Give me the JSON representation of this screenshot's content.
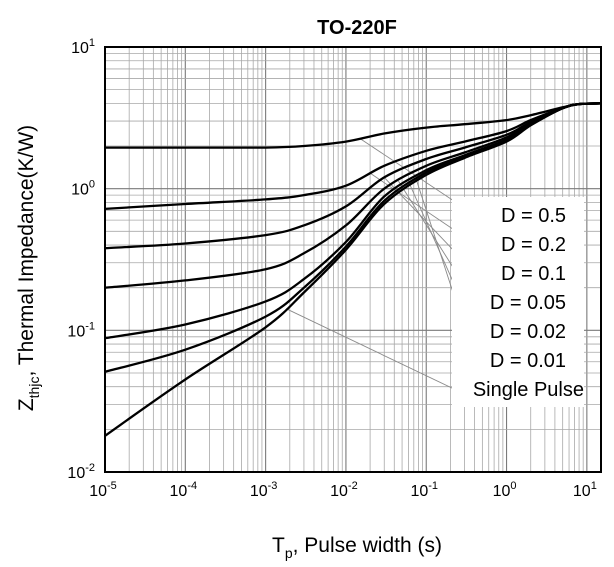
{
  "chart_data": {
    "type": "line",
    "title": "TO-220F",
    "xlabel": {
      "main": "T",
      "sub": "p",
      "rest": ", Pulse width (s)"
    },
    "ylabel": {
      "main": "Z",
      "sub": "thjc",
      "rest": ", Thermal Impedance(K/W)"
    },
    "x_scale": "log",
    "y_scale": "log",
    "xlim": [
      1e-05,
      15
    ],
    "ylim": [
      0.01,
      10
    ],
    "grid": true,
    "x_ticks": [
      {
        "base": "10",
        "exp": "-5",
        "value": 1e-05
      },
      {
        "base": "10",
        "exp": "-4",
        "value": 0.0001
      },
      {
        "base": "10",
        "exp": "-3",
        "value": 0.001
      },
      {
        "base": "10",
        "exp": "-2",
        "value": 0.01
      },
      {
        "base": "10",
        "exp": "-1",
        "value": 0.1
      },
      {
        "base": "10",
        "exp": "0",
        "value": 1
      },
      {
        "base": "10",
        "exp": "1",
        "value": 10
      }
    ],
    "y_ticks": [
      {
        "base": "10",
        "exp": "-2",
        "value": 0.01
      },
      {
        "base": "10",
        "exp": "-1",
        "value": 0.1
      },
      {
        "base": "10",
        "exp": "0",
        "value": 1
      },
      {
        "base": "10",
        "exp": "1",
        "value": 10
      }
    ],
    "legend_position": "right",
    "series": [
      {
        "name": "D = 0.5",
        "x": [
          1e-05,
          0.0001,
          0.001,
          0.003,
          0.01,
          0.03,
          0.1,
          0.3,
          1,
          2,
          5,
          8,
          15
        ],
        "y": [
          1.95,
          1.95,
          1.95,
          2.0,
          2.15,
          2.45,
          2.7,
          2.85,
          3.05,
          3.3,
          3.75,
          3.95,
          4.0
        ]
      },
      {
        "name": "D = 0.2",
        "x": [
          1e-05,
          0.0001,
          0.001,
          0.003,
          0.01,
          0.03,
          0.1,
          0.3,
          1,
          2,
          5,
          8,
          15
        ],
        "y": [
          0.72,
          0.78,
          0.84,
          0.9,
          1.05,
          1.45,
          1.85,
          2.15,
          2.55,
          3.05,
          3.7,
          3.95,
          4.0
        ]
      },
      {
        "name": "D = 0.1",
        "x": [
          1e-05,
          0.0001,
          0.001,
          0.003,
          0.01,
          0.03,
          0.1,
          0.3,
          1,
          2,
          5,
          8,
          15
        ],
        "y": [
          0.38,
          0.41,
          0.47,
          0.55,
          0.75,
          1.2,
          1.62,
          1.95,
          2.4,
          2.95,
          3.7,
          3.95,
          4.0
        ]
      },
      {
        "name": "D = 0.05",
        "x": [
          1e-05,
          0.0001,
          0.001,
          0.003,
          0.01,
          0.03,
          0.1,
          0.3,
          1,
          2,
          5,
          8,
          15
        ],
        "y": [
          0.2,
          0.225,
          0.27,
          0.35,
          0.55,
          1.0,
          1.45,
          1.8,
          2.3,
          2.9,
          3.7,
          3.95,
          4.0
        ]
      },
      {
        "name": "D = 0.02",
        "x": [
          1e-05,
          0.0001,
          0.001,
          0.003,
          0.01,
          0.03,
          0.1,
          0.3,
          1,
          2,
          5,
          8,
          15
        ],
        "y": [
          0.088,
          0.11,
          0.16,
          0.23,
          0.42,
          0.88,
          1.35,
          1.72,
          2.22,
          2.85,
          3.7,
          3.95,
          4.0
        ]
      },
      {
        "name": "D = 0.01",
        "x": [
          1e-05,
          0.0001,
          0.001,
          0.003,
          0.01,
          0.03,
          0.1,
          0.3,
          1,
          2,
          5,
          8,
          15
        ],
        "y": [
          0.051,
          0.073,
          0.125,
          0.2,
          0.39,
          0.82,
          1.3,
          1.68,
          2.18,
          2.82,
          3.7,
          3.95,
          4.0
        ]
      },
      {
        "name": "Single Pulse",
        "x": [
          1e-05,
          0.0001,
          0.001,
          0.003,
          0.01,
          0.03,
          0.1,
          0.3,
          1,
          2,
          5,
          8,
          15
        ],
        "y": [
          0.018,
          0.045,
          0.105,
          0.185,
          0.37,
          0.78,
          1.25,
          1.65,
          2.15,
          2.8,
          3.7,
          3.95,
          4.0
        ]
      }
    ]
  }
}
